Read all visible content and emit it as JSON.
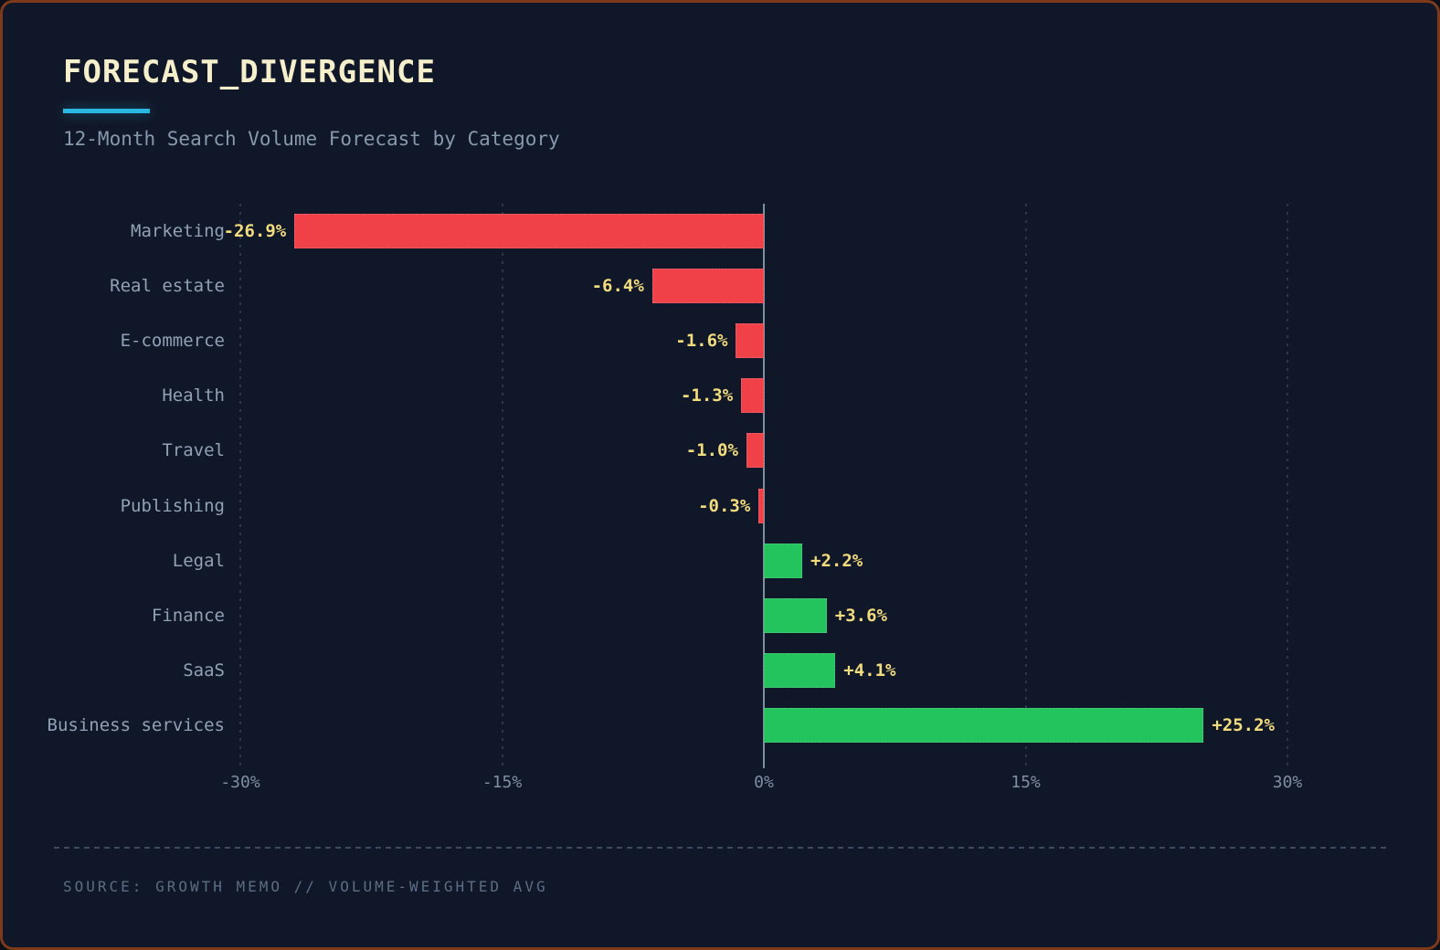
{
  "header": {
    "title": "FORECAST_DIVERGENCE",
    "subtitle": "12-Month Search Volume Forecast by Category"
  },
  "footer": {
    "source": "SOURCE: GROWTH MEMO // VOLUME-WEIGHTED AVG"
  },
  "chart_data": {
    "type": "bar",
    "orientation": "horizontal",
    "title": "FORECAST_DIVERGENCE",
    "subtitle": "12-Month Search Volume Forecast by Category",
    "categories": [
      "Marketing",
      "Real estate",
      "E-commerce",
      "Health",
      "Travel",
      "Publishing",
      "Legal",
      "Finance",
      "SaaS",
      "Business services"
    ],
    "values": [
      -26.9,
      -6.4,
      -1.6,
      -1.3,
      -1.0,
      -0.3,
      2.2,
      3.6,
      4.1,
      25.2
    ],
    "value_labels": [
      "-26.9%",
      "-6.4%",
      "-1.6%",
      "-1.3%",
      "-1.0%",
      "-0.3%",
      "+2.2%",
      "+3.6%",
      "+4.1%",
      "+25.2%"
    ],
    "xlim": [
      -30,
      30
    ],
    "x_tick_values": [
      -30,
      -15,
      0,
      15,
      30
    ],
    "x_tick_labels": [
      "-30%",
      "-15%",
      "0%",
      "15%",
      "30%"
    ],
    "grid": "vertical dashed gridlines at ticks, solid zero line",
    "legend": "none",
    "colors": {
      "negative_bar": "#ef4147",
      "positive_bar": "#23c45e",
      "value_label": "#f3dc7d",
      "category_label": "#91a1b6",
      "accent_underline": "#2ab8e0",
      "background": "#101728",
      "frame_border": "#7c3a1b",
      "zero_line": "#93a3b6"
    }
  }
}
